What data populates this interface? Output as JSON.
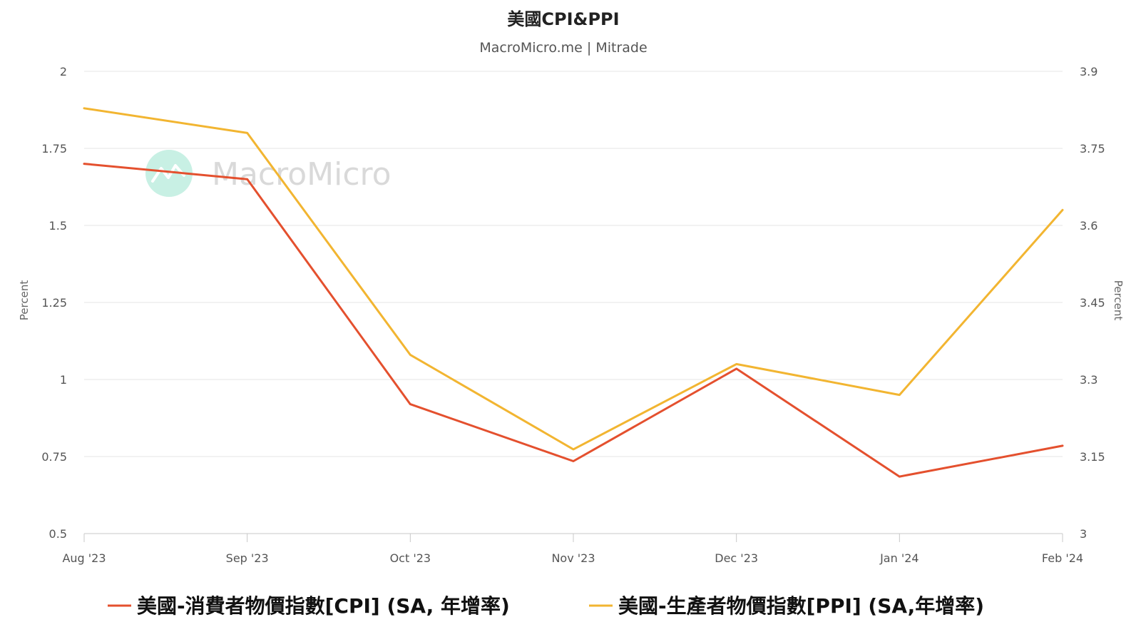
{
  "chart_data": {
    "type": "line",
    "title": "美國CPI&PPI",
    "subtitle": "MacroMicro.me | Mitrade",
    "watermark": "MacroMicro",
    "categories": [
      "Aug '23",
      "Sep '23",
      "Oct '23",
      "Nov '23",
      "Dec '23",
      "Jan '24",
      "Feb '24"
    ],
    "y_left": {
      "label": "Percent",
      "range": [
        0.5,
        2
      ],
      "ticks": [
        "0.5",
        "0.75",
        "1",
        "1.25",
        "1.5",
        "1.75",
        "2"
      ]
    },
    "y_right": {
      "label": "Percent",
      "range": [
        3,
        3.9
      ],
      "ticks": [
        "3",
        "3.15",
        "3.3",
        "3.45",
        "3.6",
        "3.75",
        "3.9"
      ]
    },
    "grid": true,
    "legend_position": "bottom",
    "series": [
      {
        "name": "美國-消費者物價指數[CPI] (SA, 年增率)",
        "axis": "left",
        "color": "#e4502e",
        "values": [
          1.7,
          1.65,
          0.92,
          0.735,
          1.035,
          0.685,
          0.785
        ]
      },
      {
        "name": "美國-生產者物價指數[PPI] (SA,年增率)",
        "axis": "right",
        "color": "#f2b531",
        "values": [
          3.828,
          3.78,
          3.348,
          3.164,
          3.33,
          3.27,
          3.63
        ]
      }
    ]
  }
}
